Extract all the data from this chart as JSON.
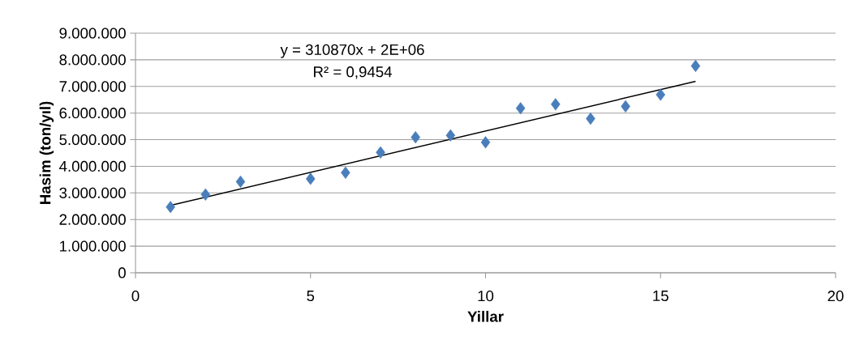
{
  "chart_data": {
    "type": "scatter",
    "xlabel": "Yillar",
    "ylabel": "Hasim (ton/yıl)",
    "annotations": [
      "y = 310870x + 2E+06",
      "R² = 0,9454"
    ],
    "x": [
      1,
      2,
      3,
      5,
      6,
      7,
      8,
      9,
      10,
      11,
      12,
      13,
      14,
      15,
      16
    ],
    "series": [
      {
        "color": "#4a7ebb",
        "marker": "diamond",
        "values": [
          2470000,
          2940000,
          3420000,
          3530000,
          3760000,
          4520000,
          5090000,
          5160000,
          4900000,
          6180000,
          6330000,
          5790000,
          6250000,
          6690000,
          7770000
        ]
      },
      {
        "type": "line",
        "color": "#000000",
        "marker": "none",
        "x": [
          1,
          16
        ],
        "values": [
          2530000,
          7190000
        ]
      }
    ],
    "xlim": [
      0,
      20
    ],
    "xticks": [
      0,
      5,
      10,
      15,
      20
    ],
    "ylim": [
      0,
      9000000
    ],
    "yticks": [
      {
        "value": 0,
        "label": "0"
      },
      {
        "value": 1000000,
        "label": "1.000.000"
      },
      {
        "value": 2000000,
        "label": "2.000.000"
      },
      {
        "value": 3000000,
        "label": "3.000.000"
      },
      {
        "value": 4000000,
        "label": "4.000.000"
      },
      {
        "value": 5000000,
        "label": "5.000.000"
      },
      {
        "value": 6000000,
        "label": "6.000.000"
      },
      {
        "value": 7000000,
        "label": "7.000.000"
      },
      {
        "value": 8000000,
        "label": "8.000.000"
      },
      {
        "value": 9000000,
        "label": "9.000.000"
      }
    ],
    "grid": "y"
  }
}
